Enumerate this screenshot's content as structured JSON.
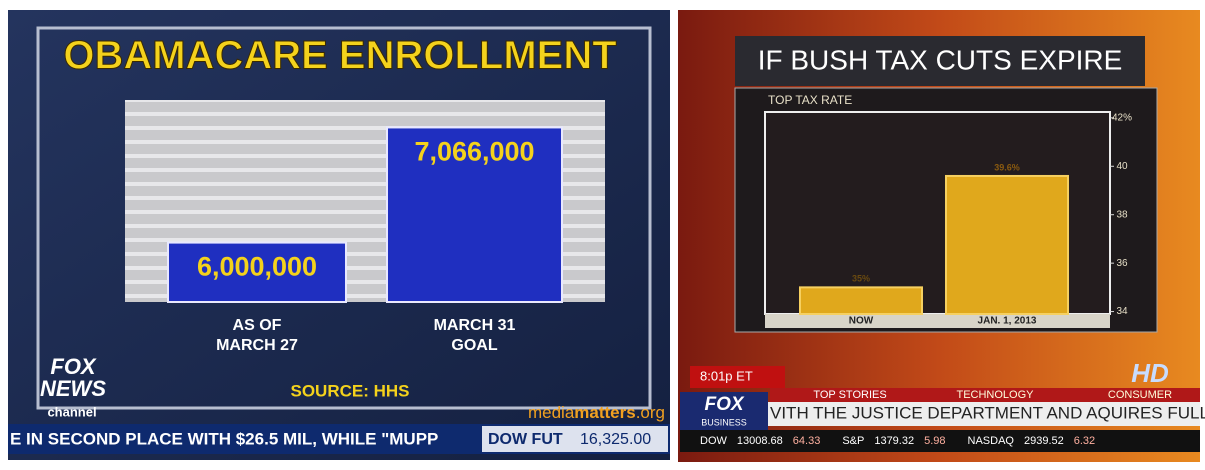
{
  "chart_data": [
    {
      "type": "bar",
      "title": "OBAMACARE ENROLLMENT",
      "categories": [
        [
          "AS OF",
          "MARCH 27"
        ],
        [
          "MARCH 31",
          "GOAL"
        ]
      ],
      "values": [
        6000000,
        7066000
      ],
      "value_labels": [
        "6,000,000",
        "7,066,000"
      ],
      "color": "#1f2fc0",
      "ylim": [
        5450000,
        7320000
      ],
      "source": "SOURCE: HHS"
    },
    {
      "type": "bar",
      "title": "IF BUSH TAX CUTS EXPIRE",
      "y_label": "TOP TAX RATE",
      "categories": [
        [
          "NOW"
        ],
        [
          "JAN. 1, 2013"
        ]
      ],
      "values": [
        35,
        39.6
      ],
      "value_labels": [
        "35%",
        "39.6%"
      ],
      "color": "#e0a81c",
      "ylim": [
        33.9,
        42.2
      ],
      "yticks": [
        {
          "value": 42,
          "label": "42%"
        },
        40,
        38,
        36,
        34
      ]
    }
  ],
  "screens": {
    "left": {
      "logo": [
        "FOX",
        "NEWS",
        "channel"
      ],
      "ticker": "E IN SECOND PLACE WITH $26.5 MIL, WHILE \"MUPP",
      "quote_name": "DOW FUT",
      "quote_value": "16,325.00",
      "watermark": [
        "media",
        "matters",
        ".org"
      ]
    },
    "right": {
      "time": "8:01p ET",
      "tabs": [
        "TOP STORIES",
        "TECHNOLOGY",
        "CONSUMER"
      ],
      "logo": [
        "FOX",
        "BUSINESS"
      ],
      "badge": "HD",
      "ticker": "VITH THE JUSTICE DEPARTMENT AND AQUIRES FULL T",
      "quotes": [
        [
          "DOW",
          "13008.68",
          "64.33"
        ],
        [
          "S&P",
          "1379.32",
          "5.98"
        ],
        [
          "NASDAQ",
          "2939.52",
          "6.32"
        ]
      ]
    }
  }
}
